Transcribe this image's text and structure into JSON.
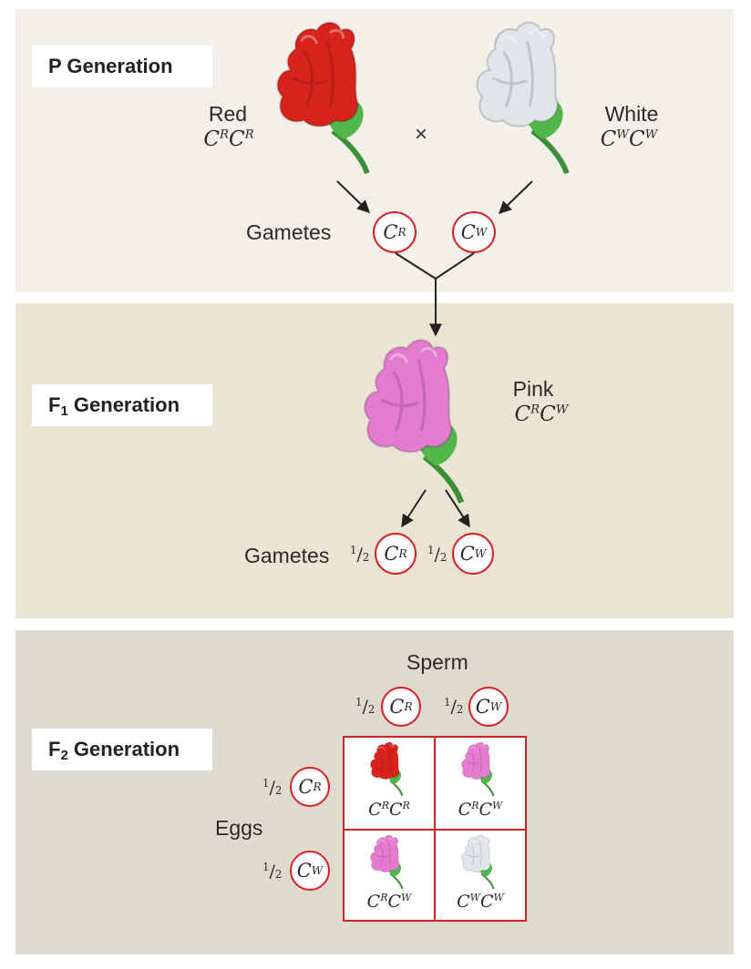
{
  "colors": {
    "red": "#d7231c",
    "white": "#dfe5e9",
    "pink": "#e37bcf",
    "stem": "#52b74a",
    "accent": "#d62024"
  },
  "p_generation": {
    "label": "P Generation",
    "red_name": "Red",
    "white_name": "White",
    "cross_symbol": "×",
    "gametes_label": "Gametes"
  },
  "f1_generation": {
    "label_prefix": "F",
    "label_sub": "1",
    "label_suffix": " Generation",
    "pink_name": "Pink",
    "gametes_label": "Gametes"
  },
  "f2_generation": {
    "label_prefix": "F",
    "label_sub": "2",
    "label_suffix": " Generation",
    "sperm_label": "Sperm",
    "eggs_label": "Eggs"
  },
  "allele_letter": "C",
  "allele_R": "R",
  "allele_W": "W",
  "fraction": {
    "num": "1",
    "den": "2"
  }
}
